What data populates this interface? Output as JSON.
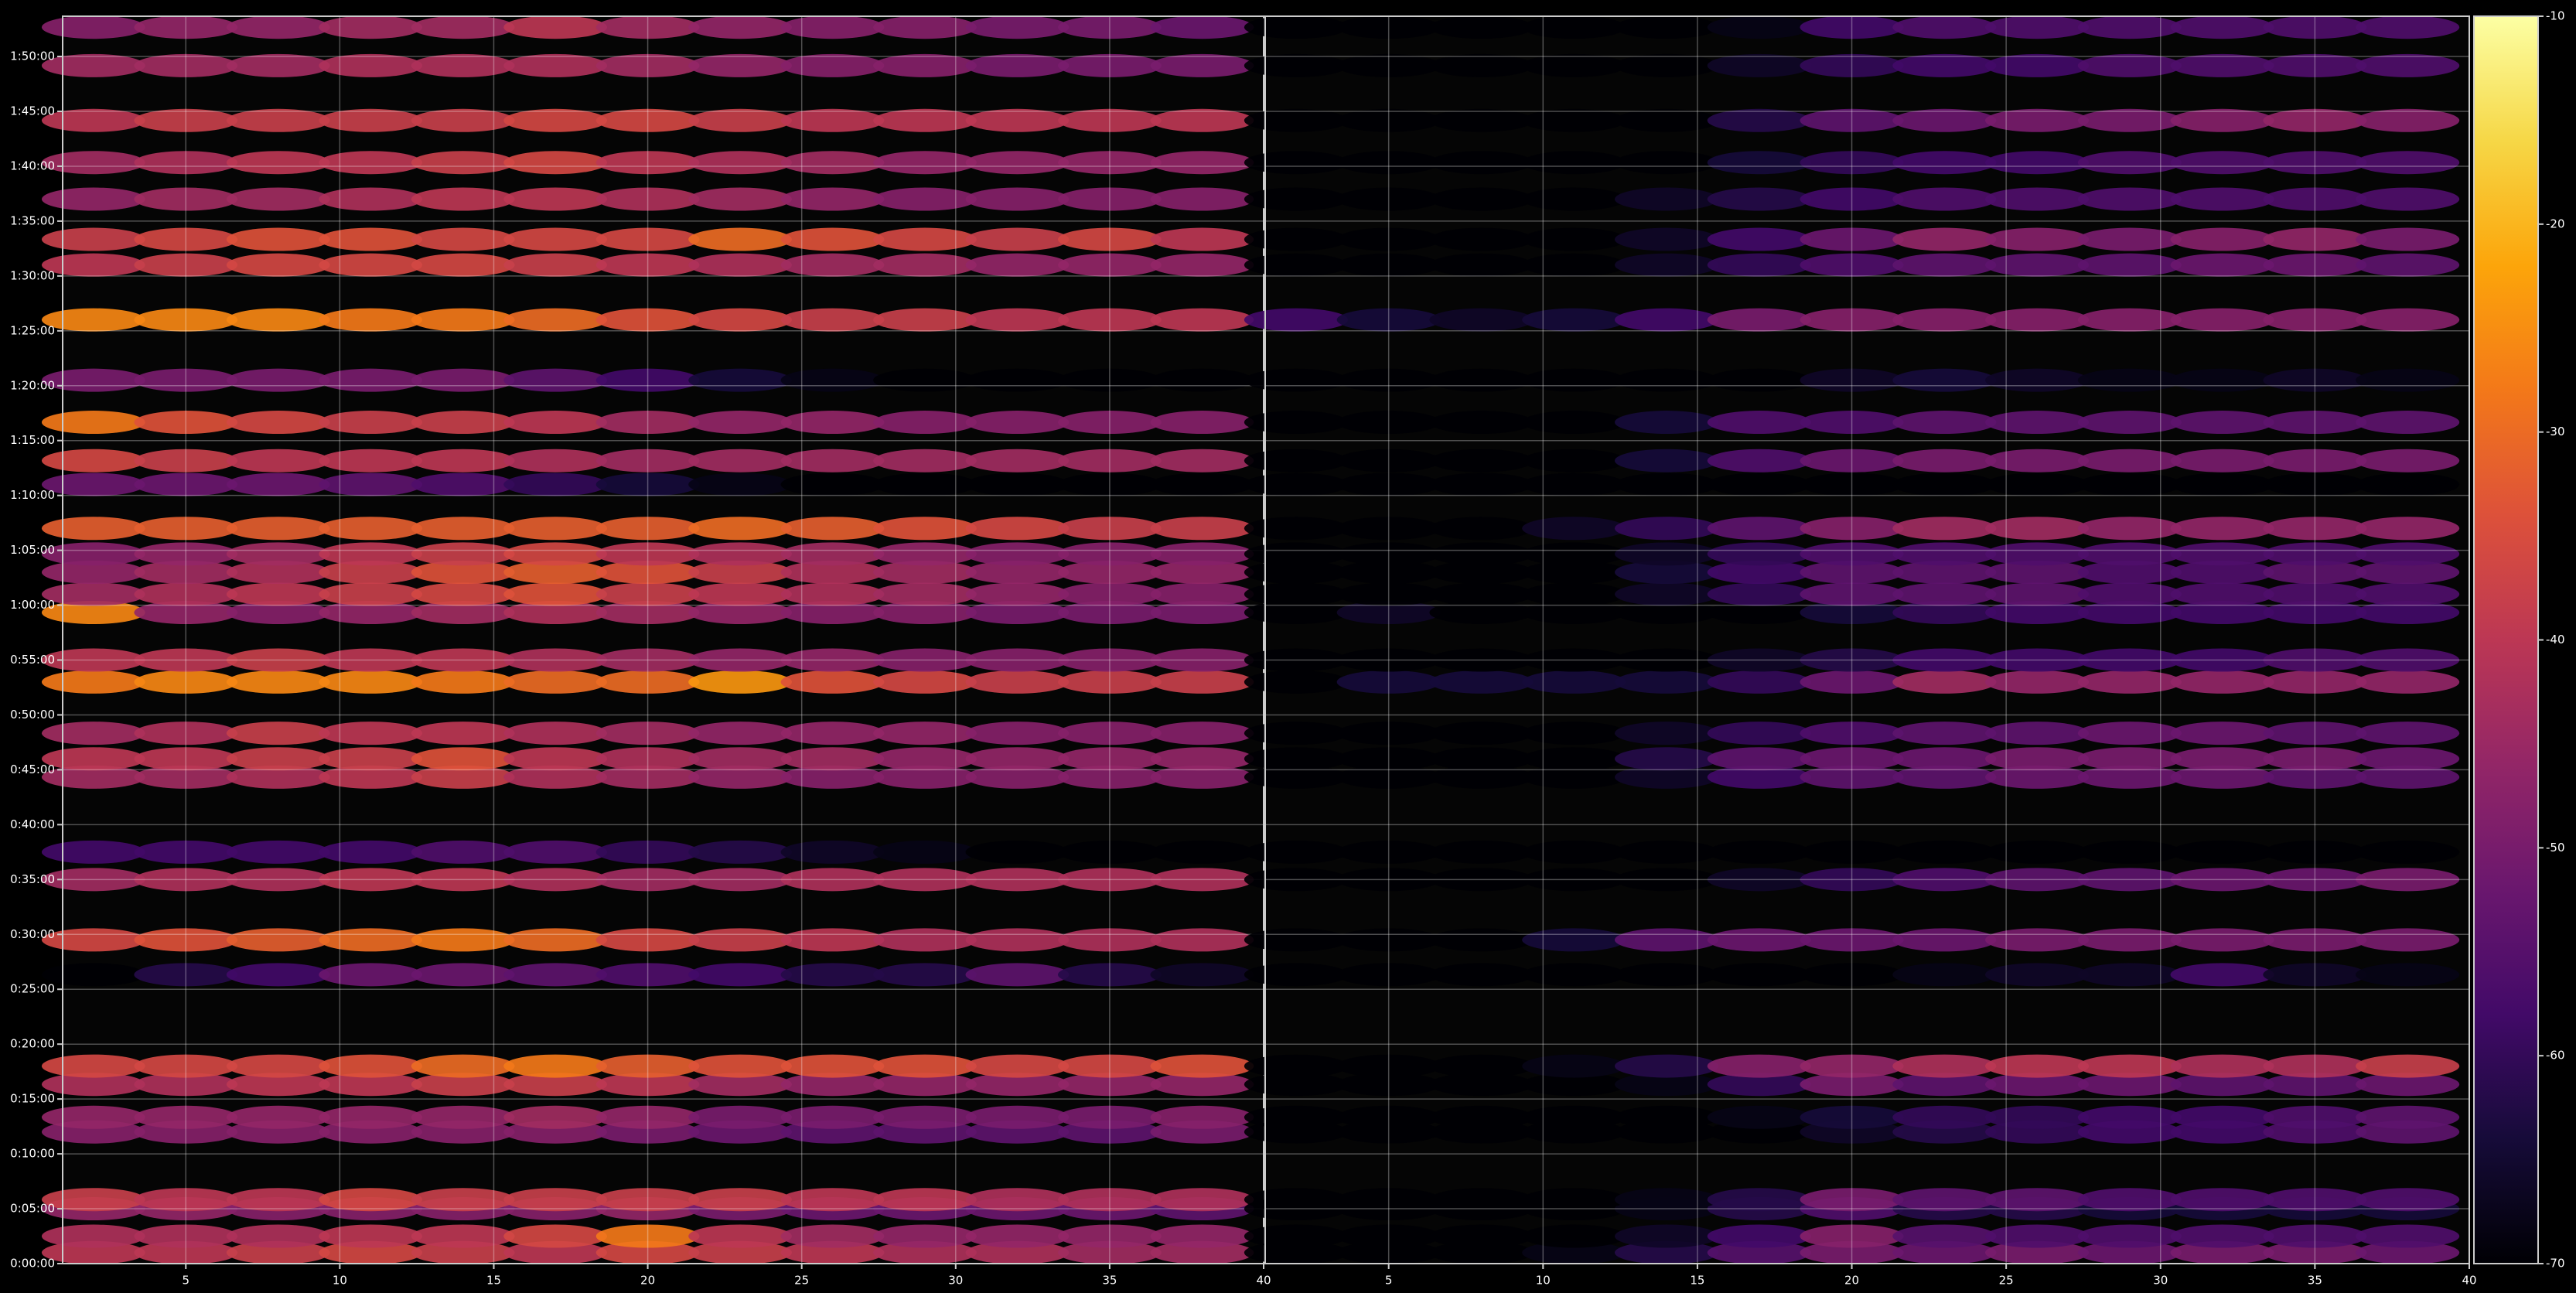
{
  "chart_data": {
    "type": "heatmap",
    "colormap": "inferno",
    "grid": true,
    "y": [
      60,
      150,
      300,
      350,
      720,
      800,
      980,
      1080,
      1580,
      1770,
      2100,
      2250,
      2660,
      2760,
      2900,
      3180,
      3300,
      3560,
      3660,
      3780,
      3880,
      4020,
      4260,
      4390,
      4600,
      4830,
      5160,
      5460,
      5600,
      5820,
      6020,
      6250,
      6550,
      6760
    ],
    "ylim": [
      0,
      6820
    ],
    "yticks": [
      {
        "value": 0,
        "label": "0:00:00"
      },
      {
        "value": 300,
        "label": "0:05:00"
      },
      {
        "value": 600,
        "label": "0:10:00"
      },
      {
        "value": 900,
        "label": "0:15:00"
      },
      {
        "value": 1200,
        "label": "0:20:00"
      },
      {
        "value": 1500,
        "label": "0:25:00"
      },
      {
        "value": 1800,
        "label": "0:30:00"
      },
      {
        "value": 2100,
        "label": "0:35:00"
      },
      {
        "value": 2400,
        "label": "0:40:00"
      },
      {
        "value": 2700,
        "label": "0:45:00"
      },
      {
        "value": 3000,
        "label": "0:50:00"
      },
      {
        "value": 3300,
        "label": "0:55:00"
      },
      {
        "value": 3600,
        "label": "1:00:00"
      },
      {
        "value": 3900,
        "label": "1:05:00"
      },
      {
        "value": 4200,
        "label": "1:10:00"
      },
      {
        "value": 4500,
        "label": "1:15:00"
      },
      {
        "value": 4800,
        "label": "1:20:00"
      },
      {
        "value": 5100,
        "label": "1:25:00"
      },
      {
        "value": 5400,
        "label": "1:30:00"
      },
      {
        "value": 5700,
        "label": "1:35:00"
      },
      {
        "value": 6000,
        "label": "1:40:00"
      },
      {
        "value": 6300,
        "label": "1:45:00"
      },
      {
        "value": 6600,
        "label": "1:50:00"
      }
    ],
    "colorbar": {
      "lim": [
        -70,
        -10
      ],
      "ticks": [
        -70,
        -60,
        -50,
        -40,
        -30,
        -20,
        -10
      ]
    },
    "panels": [
      {
        "xlim": [
          1,
          40
        ],
        "xticks": [
          5,
          10,
          15,
          20,
          25,
          30,
          35,
          40
        ],
        "x": [
          2,
          5,
          8,
          11,
          14,
          17,
          20,
          23,
          26,
          29,
          32,
          35,
          38
        ],
        "values": [
          [
            -40,
            -40,
            -38,
            -36,
            -38,
            -40,
            -36,
            -38,
            -40,
            -42,
            -42,
            -44,
            -44
          ],
          [
            -42,
            -42,
            -42,
            -40,
            -40,
            -36,
            -28,
            -40,
            -44,
            -46,
            -46,
            -46,
            -46
          ],
          [
            -46,
            -46,
            -48,
            -48,
            -48,
            -48,
            -46,
            -50,
            -52,
            -52,
            -52,
            -52,
            -54
          ],
          [
            -38,
            -40,
            -40,
            -36,
            -38,
            -38,
            -38,
            -38,
            -40,
            -40,
            -42,
            -42,
            -42
          ],
          [
            -48,
            -48,
            -48,
            -48,
            -48,
            -48,
            -50,
            -52,
            -54,
            -54,
            -54,
            -54,
            -50
          ],
          [
            -46,
            -46,
            -46,
            -46,
            -46,
            -44,
            -46,
            -50,
            -50,
            -50,
            -50,
            -50,
            -48
          ],
          [
            -42,
            -42,
            -40,
            -40,
            -38,
            -38,
            -40,
            -44,
            -46,
            -46,
            -46,
            -46,
            -46
          ],
          [
            -36,
            -36,
            -36,
            -34,
            -30,
            -28,
            -32,
            -34,
            -34,
            -34,
            -36,
            -36,
            -34
          ],
          [
            -70,
            -62,
            -58,
            -52,
            -52,
            -54,
            -56,
            -58,
            -62,
            -62,
            -54,
            -62,
            -66
          ],
          [
            -36,
            -34,
            -32,
            -30,
            -28,
            -30,
            -36,
            -38,
            -40,
            -42,
            -42,
            -42,
            -42
          ],
          [
            -44,
            -42,
            -42,
            -40,
            -40,
            -42,
            -44,
            -44,
            -42,
            -42,
            -42,
            -42,
            -42
          ],
          [
            -58,
            -58,
            -58,
            -58,
            -56,
            -56,
            -60,
            -62,
            -66,
            -68,
            -70,
            -70,
            -70
          ],
          [
            -44,
            -44,
            -42,
            -40,
            -38,
            -42,
            -44,
            -46,
            -48,
            -48,
            -48,
            -48,
            -48
          ],
          [
            -40,
            -40,
            -38,
            -38,
            -34,
            -40,
            -42,
            -44,
            -44,
            -46,
            -46,
            -46,
            -46
          ],
          [
            -44,
            -42,
            -38,
            -40,
            -40,
            -42,
            -44,
            -46,
            -46,
            -46,
            -48,
            -48,
            -48
          ],
          [
            -28,
            -26,
            -26,
            -26,
            -28,
            -30,
            -30,
            -24,
            -34,
            -36,
            -38,
            -38,
            -38
          ],
          [
            -40,
            -40,
            -38,
            -40,
            -40,
            -42,
            -44,
            -46,
            -46,
            -48,
            -48,
            -48,
            -48
          ],
          [
            -26,
            -46,
            -48,
            -46,
            -44,
            -42,
            -44,
            -46,
            -48,
            -48,
            -50,
            -50,
            -50
          ],
          [
            -44,
            -42,
            -40,
            -38,
            -36,
            -34,
            -38,
            -40,
            -42,
            -44,
            -46,
            -48,
            -48
          ],
          [
            -46,
            -44,
            -42,
            -38,
            -34,
            -32,
            -34,
            -38,
            -42,
            -44,
            -46,
            -46,
            -46
          ],
          [
            -48,
            -46,
            -44,
            -40,
            -38,
            -36,
            -40,
            -42,
            -44,
            -46,
            -48,
            -48,
            -48
          ],
          [
            -32,
            -32,
            -32,
            -32,
            -32,
            -32,
            -32,
            -30,
            -32,
            -34,
            -36,
            -38,
            -38
          ],
          [
            -52,
            -52,
            -52,
            -54,
            -56,
            -60,
            -64,
            -68,
            -70,
            -70,
            -70,
            -70,
            -70
          ],
          [
            -36,
            -38,
            -40,
            -40,
            -40,
            -42,
            -44,
            -44,
            -44,
            -44,
            -44,
            -44,
            -44
          ],
          [
            -28,
            -34,
            -36,
            -38,
            -38,
            -40,
            -44,
            -46,
            -46,
            -48,
            -48,
            -48,
            -48
          ],
          [
            -50,
            -50,
            -50,
            -50,
            -50,
            -54,
            -58,
            -64,
            -68,
            -70,
            -70,
            -70,
            -70
          ],
          [
            -26,
            -26,
            -26,
            -28,
            -28,
            -30,
            -34,
            -36,
            -38,
            -38,
            -40,
            -40,
            -40
          ],
          [
            -40,
            -38,
            -36,
            -36,
            -36,
            -38,
            -40,
            -42,
            -44,
            -44,
            -46,
            -46,
            -46
          ],
          [
            -38,
            -36,
            -34,
            -34,
            -36,
            -36,
            -36,
            -30,
            -34,
            -36,
            -38,
            -36,
            -40
          ],
          [
            -46,
            -44,
            -44,
            -42,
            -40,
            -40,
            -42,
            -44,
            -46,
            -48,
            -48,
            -48,
            -48
          ],
          [
            -44,
            -42,
            -40,
            -40,
            -38,
            -36,
            -40,
            -42,
            -44,
            -46,
            -46,
            -46,
            -46
          ],
          [
            -40,
            -38,
            -38,
            -38,
            -38,
            -36,
            -36,
            -38,
            -40,
            -40,
            -40,
            -40,
            -40
          ],
          [
            -44,
            -44,
            -44,
            -42,
            -42,
            -42,
            -44,
            -46,
            -48,
            -48,
            -50,
            -50,
            -50
          ],
          [
            -48,
            -46,
            -46,
            -44,
            -44,
            -40,
            -44,
            -46,
            -48,
            -48,
            -50,
            -50,
            -52
          ]
        ]
      },
      {
        "xlim": [
          1,
          40
        ],
        "xticks": [
          5,
          10,
          15,
          20,
          25,
          30,
          35,
          40
        ],
        "x": [
          2,
          5,
          8,
          11,
          14,
          17,
          20,
          23,
          26,
          29,
          32,
          35,
          38
        ],
        "values": [
          [
            -70,
            -70,
            -70,
            -68,
            -62,
            -55,
            -50,
            -52,
            -50,
            -52,
            -50,
            -50,
            -52
          ],
          [
            -70,
            -70,
            -70,
            -70,
            -66,
            -58,
            -48,
            -55,
            -56,
            -56,
            -56,
            -56,
            -56
          ],
          [
            -70,
            -70,
            -70,
            -70,
            -68,
            -62,
            -56,
            -62,
            -62,
            -64,
            -64,
            -64,
            -64
          ],
          [
            -70,
            -70,
            -70,
            -70,
            -68,
            -62,
            -50,
            -54,
            -54,
            -56,
            -56,
            -56,
            -56
          ],
          [
            -70,
            -70,
            -70,
            -70,
            -70,
            -70,
            -66,
            -62,
            -60,
            -58,
            -58,
            -56,
            -54
          ],
          [
            -70,
            -70,
            -70,
            -70,
            -70,
            -68,
            -64,
            -60,
            -60,
            -58,
            -58,
            -56,
            -54
          ],
          [
            -70,
            -70,
            -70,
            -70,
            -68,
            -60,
            -50,
            -54,
            -52,
            -52,
            -54,
            -54,
            -52
          ],
          [
            -70,
            -70,
            -70,
            -68,
            -62,
            -48,
            -46,
            -42,
            -40,
            -40,
            -42,
            -42,
            -38
          ],
          [
            -70,
            -70,
            -70,
            -70,
            -70,
            -70,
            -70,
            -68,
            -66,
            -66,
            -58,
            -66,
            -68
          ],
          [
            -70,
            -70,
            -70,
            -64,
            -54,
            -52,
            -52,
            -52,
            -50,
            -50,
            -50,
            -50,
            -50
          ],
          [
            -70,
            -70,
            -70,
            -70,
            -70,
            -66,
            -60,
            -56,
            -54,
            -54,
            -52,
            -52,
            -50
          ],
          [
            -70,
            -70,
            -70,
            -70,
            -70,
            -70,
            -70,
            -70,
            -70,
            -70,
            -70,
            -70,
            -70
          ],
          [
            -70,
            -70,
            -70,
            -70,
            -66,
            -58,
            -54,
            -54,
            -52,
            -52,
            -52,
            -54,
            -54
          ],
          [
            -70,
            -70,
            -70,
            -70,
            -62,
            -54,
            -52,
            -52,
            -50,
            -50,
            -50,
            -50,
            -52
          ],
          [
            -70,
            -70,
            -70,
            -70,
            -66,
            -60,
            -56,
            -54,
            -54,
            -52,
            -52,
            -54,
            -54
          ],
          [
            -70,
            -64,
            -64,
            -64,
            -64,
            -60,
            -52,
            -44,
            -46,
            -46,
            -46,
            -46,
            -46
          ],
          [
            -70,
            -70,
            -70,
            -70,
            -70,
            -66,
            -62,
            -58,
            -58,
            -58,
            -58,
            -56,
            -56
          ],
          [
            -70,
            -66,
            -70,
            -70,
            -70,
            -70,
            -64,
            -60,
            -58,
            -58,
            -58,
            -58,
            -58
          ],
          [
            -70,
            -70,
            -70,
            -70,
            -66,
            -60,
            -54,
            -54,
            -54,
            -56,
            -56,
            -56,
            -56
          ],
          [
            -70,
            -70,
            -70,
            -70,
            -64,
            -58,
            -54,
            -54,
            -54,
            -56,
            -56,
            -54,
            -54
          ],
          [
            -70,
            -70,
            -70,
            -70,
            -66,
            -60,
            -56,
            -56,
            -56,
            -56,
            -56,
            -56,
            -56
          ],
          [
            -70,
            -70,
            -70,
            -66,
            -60,
            -54,
            -48,
            -44,
            -44,
            -46,
            -46,
            -46,
            -46
          ],
          [
            -70,
            -70,
            -70,
            -70,
            -70,
            -70,
            -70,
            -70,
            -70,
            -70,
            -70,
            -70,
            -70
          ],
          [
            -70,
            -70,
            -70,
            -70,
            -64,
            -56,
            -52,
            -50,
            -50,
            -50,
            -50,
            -50,
            -50
          ],
          [
            -70,
            -70,
            -70,
            -70,
            -64,
            -56,
            -56,
            -54,
            -54,
            -54,
            -54,
            -54,
            -54
          ],
          [
            -70,
            -70,
            -70,
            -70,
            -70,
            -70,
            -66,
            -64,
            -66,
            -68,
            -68,
            -66,
            -68
          ],
          [
            -58,
            -64,
            -66,
            -64,
            -58,
            -50,
            -48,
            -48,
            -48,
            -48,
            -48,
            -48,
            -48
          ],
          [
            -70,
            -70,
            -70,
            -70,
            -66,
            -60,
            -56,
            -54,
            -54,
            -54,
            -52,
            -52,
            -54
          ],
          [
            -70,
            -70,
            -70,
            -70,
            -66,
            -58,
            -52,
            -46,
            -48,
            -50,
            -48,
            -46,
            -50
          ],
          [
            -70,
            -70,
            -70,
            -70,
            -66,
            -62,
            -58,
            -56,
            -56,
            -56,
            -56,
            -56,
            -56
          ],
          [
            -70,
            -70,
            -70,
            -70,
            -70,
            -64,
            -60,
            -58,
            -58,
            -56,
            -56,
            -56,
            -56
          ],
          [
            -70,
            -70,
            -70,
            -70,
            -70,
            -62,
            -54,
            -52,
            -50,
            -50,
            -48,
            -46,
            -48
          ],
          [
            -70,
            -70,
            -70,
            -70,
            -70,
            -66,
            -60,
            -58,
            -58,
            -56,
            -56,
            -56,
            -56
          ],
          [
            -70,
            -70,
            -70,
            -70,
            -70,
            -68,
            -58,
            -56,
            -56,
            -56,
            -56,
            -56,
            -56
          ]
        ]
      }
    ]
  }
}
